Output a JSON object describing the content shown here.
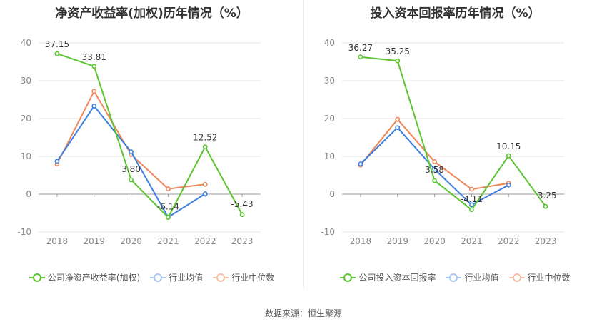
{
  "chart_data": [
    {
      "type": "line",
      "title": "净资产收益率(加权)历年情况（%）",
      "categories": [
        "2018",
        "2019",
        "2020",
        "2021",
        "2022",
        "2023"
      ],
      "ylim": [
        -10,
        40
      ],
      "yticks": [
        -10,
        0,
        10,
        20,
        30,
        40
      ],
      "grid": true,
      "legend_position": "bottom",
      "series": [
        {
          "name": "公司净资产收益率(加权)",
          "color": "#5bc530",
          "values": [
            37.15,
            33.81,
            3.8,
            -6.14,
            12.52,
            -5.43
          ],
          "labels": [
            "37.15",
            "33.81",
            "3.80",
            "-6.14",
            "12.52",
            "-5.43"
          ]
        },
        {
          "name": "行业均值",
          "color": "#3d7fe0",
          "values": [
            8.7,
            23.3,
            11.2,
            -6.1,
            0.1,
            null
          ]
        },
        {
          "name": "行业中位数",
          "color": "#f0865a",
          "values": [
            8.0,
            27.2,
            10.5,
            1.4,
            2.6,
            null
          ]
        }
      ]
    },
    {
      "type": "line",
      "title": "投入资本回报率历年情况（%）",
      "categories": [
        "2018",
        "2019",
        "2020",
        "2021",
        "2022",
        "2023"
      ],
      "ylim": [
        -10,
        40
      ],
      "yticks": [
        -10,
        0,
        10,
        20,
        30,
        40
      ],
      "grid": true,
      "legend_position": "bottom",
      "series": [
        {
          "name": "公司投入资本回报率",
          "color": "#5bc530",
          "values": [
            36.27,
            35.25,
            3.58,
            -4.11,
            10.15,
            -3.25
          ],
          "labels": [
            "36.27",
            "35.25",
            "3.58",
            "-4.11",
            "10.15",
            "-3.25"
          ]
        },
        {
          "name": "行业均值",
          "color": "#3d7fe0",
          "values": [
            8.0,
            17.6,
            6.6,
            -2.8,
            2.4,
            null
          ]
        },
        {
          "name": "行业中位数",
          "color": "#f0865a",
          "values": [
            7.7,
            19.8,
            8.6,
            1.3,
            2.9,
            null
          ]
        }
      ]
    }
  ],
  "footer": "数据来源：恒生聚源"
}
